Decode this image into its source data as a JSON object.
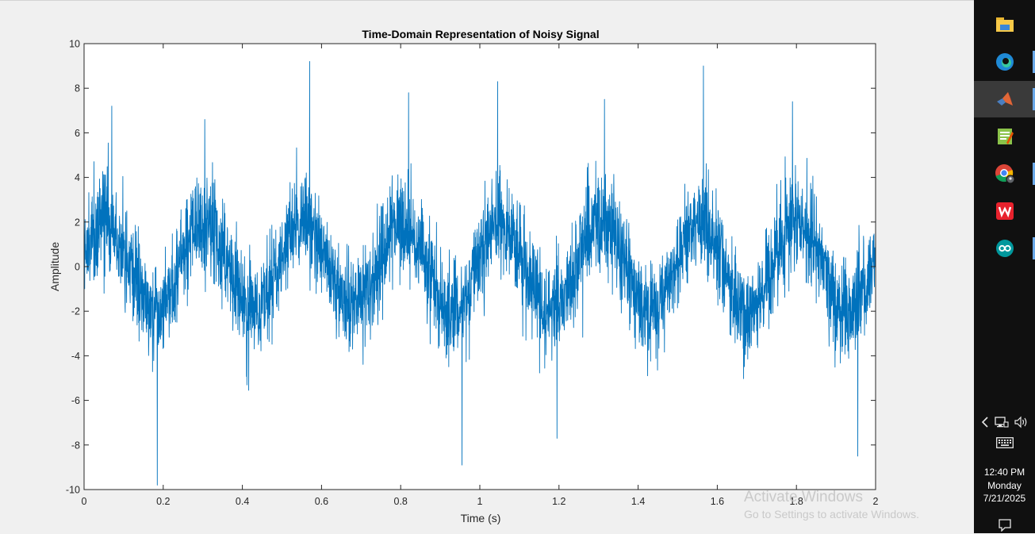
{
  "chart_data": {
    "type": "line",
    "title": "Time-Domain Representation of Noisy Signal",
    "xlabel": "Time (s)",
    "ylabel": "Amplitude",
    "xlim": [
      0,
      2
    ],
    "ylim": [
      -10,
      10
    ],
    "xticks": [
      0,
      0.2,
      0.4,
      0.6,
      0.8,
      1,
      1.2,
      1.4,
      1.6,
      1.8,
      2
    ],
    "xtick_labels": [
      "0",
      "0.2",
      "0.4",
      "0.6",
      "0.8",
      "1",
      "1.2",
      "1.4",
      "1.6",
      "1.8",
      "2"
    ],
    "yticks": [
      -10,
      -8,
      -6,
      -4,
      -2,
      0,
      2,
      4,
      6,
      8,
      10
    ],
    "ytick_labels": [
      "-10",
      "-8",
      "-6",
      "-4",
      "-2",
      "0",
      "2",
      "4",
      "6",
      "8",
      "10"
    ],
    "grid": false,
    "series": [
      {
        "color": "#0072BD",
        "sinusoid_frequency_hz": 4,
        "sinusoid_amplitude": 2,
        "noise_std": 1.1,
        "peaks": [
          {
            "x": 0.07,
            "y": 7.2
          },
          {
            "x": 0.305,
            "y": 6.6
          },
          {
            "x": 0.57,
            "y": 9.2
          },
          {
            "x": 0.82,
            "y": 7.8
          },
          {
            "x": 1.045,
            "y": 8.3
          },
          {
            "x": 1.315,
            "y": 7.5
          },
          {
            "x": 1.565,
            "y": 9.0
          },
          {
            "x": 1.79,
            "y": 7.4
          }
        ],
        "troughs": [
          {
            "x": 0.185,
            "y": -9.8
          },
          {
            "x": 0.955,
            "y": -8.9
          },
          {
            "x": 1.195,
            "y": -7.7
          },
          {
            "x": 1.955,
            "y": -8.5
          }
        ]
      }
    ]
  },
  "watermark": {
    "line1": "Activate Windows",
    "line2": "Go to Settings to activate Windows."
  },
  "taskbar": {
    "apps": [
      {
        "icon": "file-explorer-icon",
        "active": false,
        "indicator": false
      },
      {
        "icon": "edge-icon",
        "active": false,
        "indicator": true
      },
      {
        "icon": "matlab-icon",
        "active": true,
        "indicator": true
      },
      {
        "icon": "notepad-plus-icon",
        "active": false,
        "indicator": false
      },
      {
        "icon": "chrome-icon",
        "active": false,
        "indicator": true
      },
      {
        "icon": "wps-office-icon",
        "active": false,
        "indicator": false
      },
      {
        "icon": "arduino-icon",
        "active": false,
        "indicator": true
      }
    ],
    "tray_icons": [
      "chevron-left-icon",
      "network-icon",
      "volume-icon",
      "keyboard-icon"
    ],
    "clock": {
      "time": "12:40 PM",
      "day": "Monday",
      "date": "7/21/2025"
    },
    "notification_icon": "notification-icon"
  }
}
